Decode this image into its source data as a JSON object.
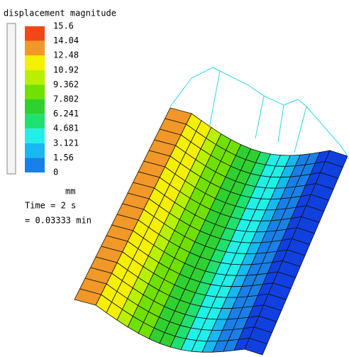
{
  "legend": {
    "title": "displacement magnitude",
    "labels": [
      "15.6",
      "14.04",
      "12.48",
      "10.92",
      "9.362",
      "7.802",
      "6.241",
      "4.681",
      "3.121",
      "1.56",
      "0"
    ],
    "colors": [
      "#f04818",
      "#f09828",
      "#f4f000",
      "#b8f000",
      "#70e000",
      "#30d030",
      "#20e070",
      "#20f0e8",
      "#18b8f0",
      "#1880e8",
      "#1040e0"
    ],
    "unit": "mm"
  },
  "time": {
    "line1": "Time = 2 s",
    "line2": "= 0.03333 min"
  }
}
